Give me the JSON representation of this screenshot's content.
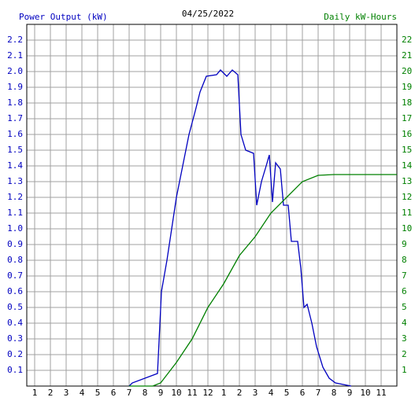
{
  "chart_data": {
    "type": "line",
    "title": "04/25/2022",
    "y_label": "Power Output (kW)",
    "y2_label": "Daily kW-Hours",
    "xlim": [
      0.5,
      24
    ],
    "xticks": [
      1,
      2,
      3,
      4,
      5,
      6,
      7,
      8,
      9,
      10,
      11,
      12,
      {
        "value": 13,
        "label": "1"
      },
      {
        "value": 14,
        "label": "2"
      },
      {
        "value": 15,
        "label": "3"
      },
      {
        "value": 16,
        "label": "4"
      },
      {
        "value": 17,
        "label": "5"
      },
      {
        "value": 18,
        "label": "6"
      },
      {
        "value": 19,
        "label": "7"
      },
      {
        "value": 20,
        "label": "8"
      },
      {
        "value": 21,
        "label": "9"
      },
      {
        "value": 22,
        "label": "10"
      },
      {
        "value": 23,
        "label": "11"
      }
    ],
    "ylim": [
      0,
      2.3
    ],
    "yticks": [
      0.1,
      0.2,
      0.3,
      0.4,
      0.5,
      0.6,
      0.7,
      0.8,
      0.9,
      {
        "value": 1,
        "label": "1.0"
      },
      1.1,
      1.2,
      1.3,
      1.4,
      1.5,
      1.6,
      1.7,
      1.8,
      1.9,
      {
        "value": 2,
        "label": "2.0"
      },
      2.1,
      2.2
    ],
    "y2lim": [
      0,
      23
    ],
    "y2ticks": [
      1,
      2,
      3,
      4,
      5,
      6,
      7,
      8,
      9,
      10,
      11,
      12,
      13,
      14,
      15,
      16,
      17,
      18,
      19,
      20,
      21,
      22
    ],
    "grid": true,
    "series": [
      {
        "name": "Power Output (kW)",
        "color": "#0000c0",
        "x": [
          7.0,
          7.2,
          8.8,
          9.05,
          9.4,
          9.7,
          10.0,
          10.4,
          10.8,
          11.2,
          11.5,
          11.9,
          12.55,
          12.8,
          13.2,
          13.55,
          13.9,
          14.1,
          14.4,
          14.9,
          15.1,
          15.4,
          15.7,
          15.9,
          16.1,
          16.3,
          16.6,
          16.8,
          17.1,
          17.3,
          17.7,
          17.9,
          18.1,
          18.3,
          18.6,
          18.9,
          19.3,
          19.7,
          20.1,
          21.1
        ],
        "values": [
          0,
          0.02,
          0.08,
          0.6,
          0.8,
          1.0,
          1.2,
          1.4,
          1.6,
          1.75,
          1.87,
          1.97,
          1.98,
          2.01,
          1.97,
          2.01,
          1.98,
          1.6,
          1.5,
          1.48,
          1.15,
          1.3,
          1.4,
          1.47,
          1.17,
          1.42,
          1.38,
          1.15,
          1.15,
          0.92,
          0.92,
          0.75,
          0.5,
          0.52,
          0.4,
          0.25,
          0.12,
          0.05,
          0.02,
          0
        ]
      },
      {
        "name": "Daily kW-Hours",
        "color": "#008000",
        "axis": "y2",
        "x": [
          7.0,
          8.5,
          9.0,
          10.0,
          11.0,
          12.0,
          13.0,
          14.0,
          15.0,
          16.0,
          17.0,
          18.0,
          19.0,
          20.0,
          24.0
        ],
        "values": [
          0,
          0,
          0.2,
          1.5,
          3,
          5,
          6.5,
          8.3,
          9.5,
          11,
          12,
          13,
          13.4,
          13.45,
          13.45
        ]
      }
    ]
  }
}
